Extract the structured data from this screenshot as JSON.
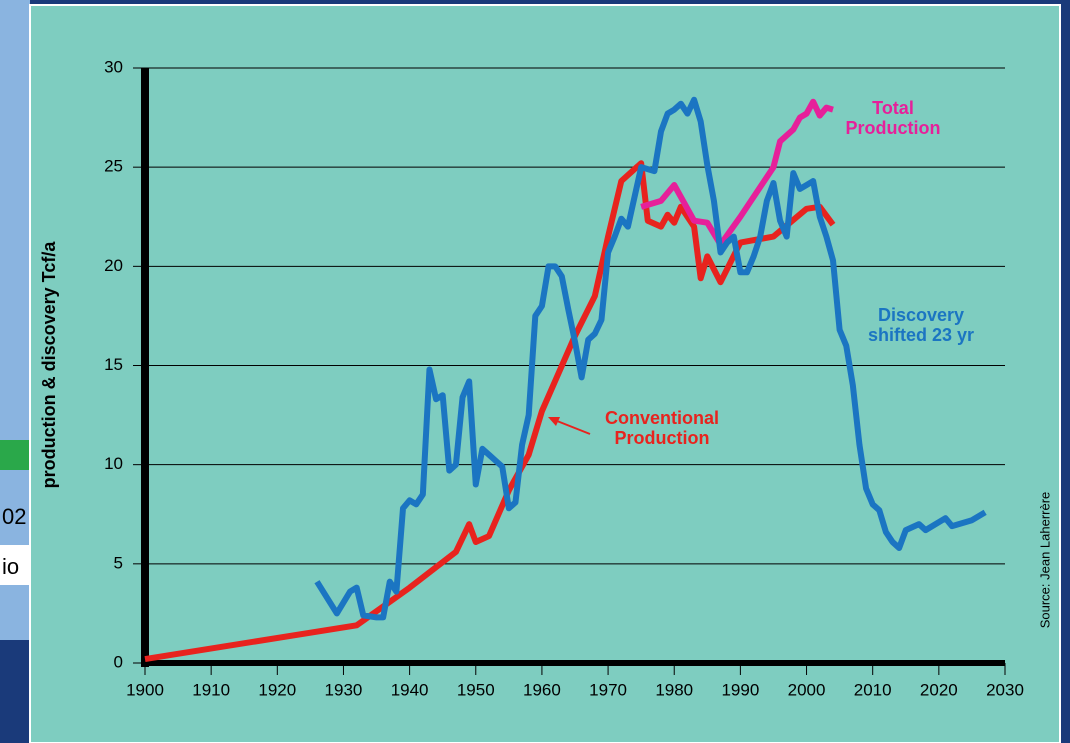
{
  "chart_data": {
    "type": "line",
    "ylabel": "production & discovery Tcf/a",
    "source": "Source: Jean Laherrère",
    "xlim": [
      1900,
      2030
    ],
    "xticks": [
      1900,
      1910,
      1920,
      1930,
      1940,
      1950,
      1960,
      1970,
      1980,
      1990,
      2000,
      2010,
      2020,
      2030
    ],
    "ylim": [
      0,
      30
    ],
    "yticks": [
      0,
      5,
      10,
      15,
      20,
      25,
      30
    ],
    "grid": true,
    "series": [
      {
        "name": "Conventional Production",
        "color": "#e8231e",
        "x": [
          1900,
          1932,
          1940,
          1947,
          1949,
          1950,
          1952,
          1955,
          1958,
          1960,
          1965,
          1968,
          1970,
          1972,
          1975,
          1976,
          1978,
          1979,
          1980,
          1981,
          1983,
          1984,
          1985,
          1987,
          1990,
          1995,
          2000,
          2002,
          2004
        ],
        "values": [
          0.2,
          1.9,
          3.8,
          5.6,
          7,
          6.1,
          6.4,
          8.7,
          10.5,
          12.7,
          16.5,
          18.5,
          21.5,
          24.3,
          25.2,
          22.3,
          22,
          22.6,
          22.2,
          23,
          22,
          19.4,
          20.5,
          19.2,
          21.2,
          21.5,
          22.9,
          23,
          22.1
        ]
      },
      {
        "name": "Total Production",
        "color": "#e6209a",
        "x": [
          1975,
          1978,
          1980,
          1983,
          1985,
          1987,
          1990,
          1993,
          1995,
          1996,
          1998,
          1999,
          2000,
          2001,
          2002,
          2003,
          2004
        ],
        "values": [
          23,
          23.3,
          24.1,
          22.3,
          22.2,
          21.1,
          22.5,
          24,
          25,
          26.3,
          26.9,
          27.5,
          27.7,
          28.3,
          27.6,
          28,
          27.9
        ]
      },
      {
        "name": "Discovery shifted 23 yr",
        "color": "#1b75c2",
        "x": [
          1926,
          1929,
          1931,
          1932,
          1933,
          1935,
          1936,
          1937,
          1938,
          1939,
          1940,
          1941,
          1942,
          1943,
          1944,
          1945,
          1946,
          1947,
          1948,
          1949,
          1950,
          1951,
          1952,
          1953,
          1954,
          1955,
          1956,
          1957,
          1958,
          1959,
          1960,
          1961,
          1962,
          1963,
          1964,
          1965,
          1966,
          1967,
          1968,
          1969,
          1970,
          1971,
          1972,
          1973,
          1974,
          1975,
          1977,
          1978,
          1979,
          1980,
          1981,
          1982,
          1983,
          1984,
          1985,
          1986,
          1987,
          1988,
          1989,
          1990,
          1991,
          1992,
          1993,
          1994,
          1995,
          1996,
          1997,
          1998,
          1999,
          2000,
          2001,
          2002,
          2003,
          2004,
          2005,
          2006,
          2007,
          2008,
          2009,
          2010,
          2011,
          2012,
          2013,
          2014,
          2015,
          2017,
          2018,
          2021,
          2022,
          2025,
          2027
        ],
        "values": [
          4.1,
          2.5,
          3.6,
          3.8,
          2.4,
          2.3,
          2.3,
          4.1,
          3.6,
          7.8,
          8.2,
          8,
          8.5,
          14.8,
          13.3,
          13.5,
          9.7,
          10,
          13.4,
          14.2,
          9,
          10.8,
          10.5,
          10.2,
          9.9,
          7.8,
          8.1,
          11,
          12.5,
          17.5,
          18,
          20,
          20,
          19.5,
          17.8,
          16.2,
          14.4,
          16.3,
          16.6,
          17.3,
          20.7,
          21.5,
          22.4,
          22,
          23.5,
          25,
          24.8,
          26.8,
          27.7,
          27.9,
          28.2,
          27.7,
          28.4,
          27.3,
          25.1,
          23.3,
          20.7,
          21.2,
          21.5,
          19.7,
          19.7,
          20.5,
          21.5,
          23.3,
          24.2,
          22.3,
          21.5,
          24.7,
          23.9,
          24.1,
          24.3,
          22.5,
          21.5,
          20.3,
          16.8,
          16,
          14,
          11,
          8.8,
          8,
          7.7,
          6.6,
          6.1,
          5.8,
          6.7,
          7,
          6.7,
          7.3,
          6.9,
          7.2,
          7.6
        ]
      }
    ]
  },
  "background_fragments": [
    "02",
    "io"
  ]
}
